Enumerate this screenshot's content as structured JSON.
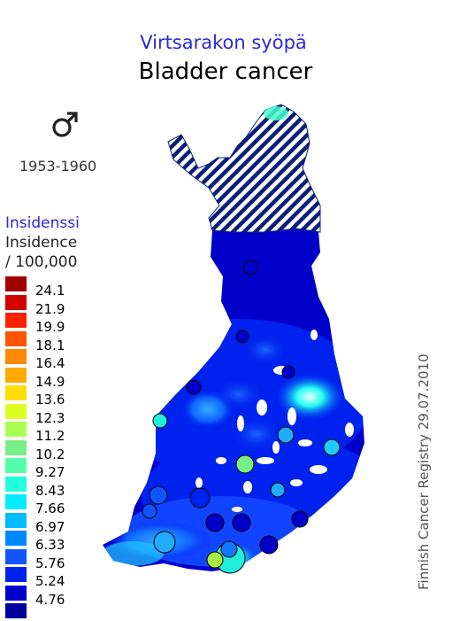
{
  "title_fi": "Virtsarakon syöpä",
  "title_en": "Bladder cancer",
  "sex_symbol": "♂",
  "icon": "male-symbol-icon",
  "period": "1953-1960",
  "legend": {
    "title_fi": "Insidenssi",
    "title_en": "Insidence",
    "unit": "/ 100,000",
    "items": [
      {
        "label": "24.1",
        "color": "#a00000"
      },
      {
        "label": "21.9",
        "color": "#d40000"
      },
      {
        "label": "19.9",
        "color": "#ff2200"
      },
      {
        "label": "18.1",
        "color": "#ff5500"
      },
      {
        "label": "16.4",
        "color": "#ff8800"
      },
      {
        "label": "14.9",
        "color": "#ffaa00"
      },
      {
        "label": "13.6",
        "color": "#ffdd00"
      },
      {
        "label": "12.3",
        "color": "#ddff22"
      },
      {
        "label": "11.2",
        "color": "#aaff55"
      },
      {
        "label": "10.2",
        "color": "#77ee88"
      },
      {
        "label": "9.27",
        "color": "#55ffaa"
      },
      {
        "label": "8.43",
        "color": "#22ffdd"
      },
      {
        "label": "7.66",
        "color": "#00eeff"
      },
      {
        "label": "6.97",
        "color": "#00bbff"
      },
      {
        "label": "6.33",
        "color": "#0088ff"
      },
      {
        "label": "5.76",
        "color": "#1155ff"
      },
      {
        "label": "5.24",
        "color": "#0022ee"
      },
      {
        "label": "4.76",
        "color": "#0000cc"
      },
      {
        "label": "",
        "color": "#00009a"
      }
    ]
  },
  "credit": "Finnish Cancer Registry 29.07.2010"
}
